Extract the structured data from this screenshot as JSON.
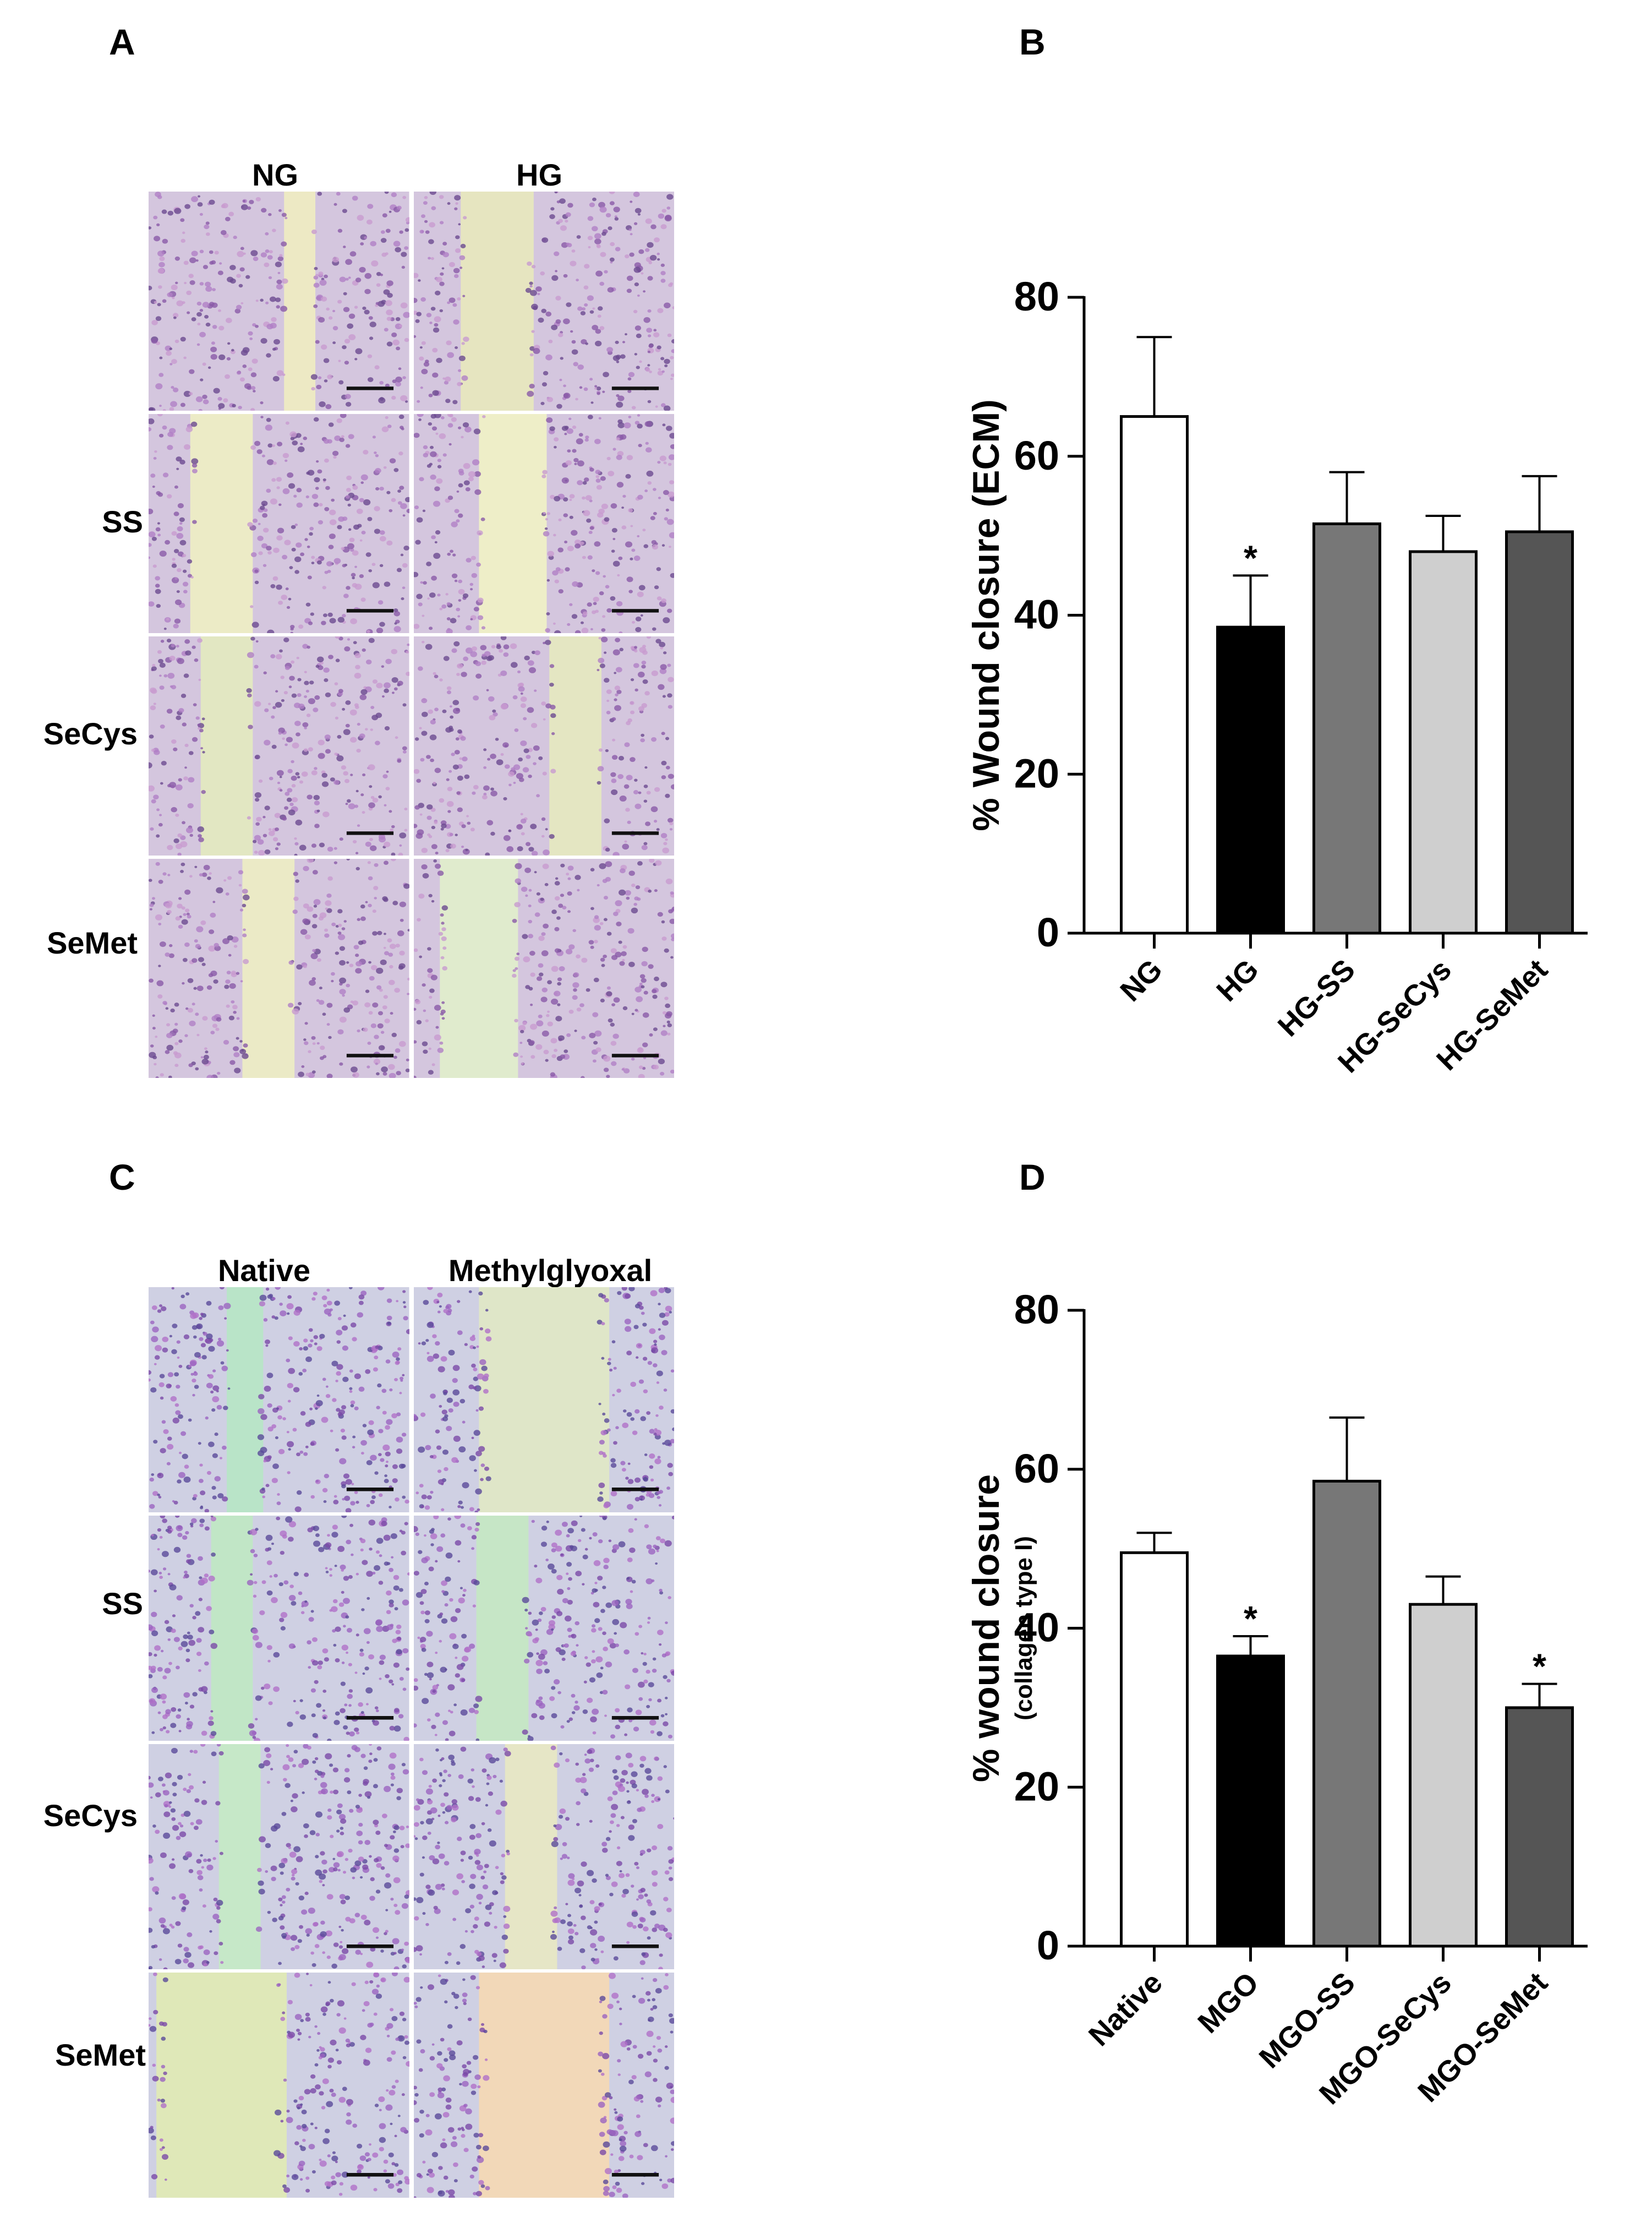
{
  "panel_letters": [
    "A",
    "B",
    "C",
    "D"
  ],
  "panel_a": {
    "column_labels": [
      "NG",
      "HG"
    ],
    "row_labels": [
      "",
      "SS",
      "SeCys",
      "SeMet"
    ]
  },
  "panel_c": {
    "column_labels": [
      "Native",
      "Methylglyoxal"
    ],
    "row_labels": [
      "",
      "SS",
      "SeCys",
      "SeMet"
    ]
  },
  "chart_data": [
    {
      "type": "bar",
      "categories": [
        "NG",
        "HG",
        "HG-SS",
        "HG-SeCys",
        "HG-SeMet"
      ],
      "values": [
        65,
        38.5,
        51.5,
        48,
        50.5
      ],
      "errors": [
        10,
        6.5,
        6.5,
        4.5,
        7
      ],
      "significance": [
        "",
        "*",
        "",
        "",
        ""
      ],
      "bar_colors": [
        "#ffffff",
        "#000000",
        "#777777",
        "#cfcfcf",
        "#555555"
      ],
      "ylabel": "% Wound closure (ECM)",
      "ylabel_sub": "",
      "ylim": [
        0,
        80
      ],
      "yticks": [
        0,
        20,
        40,
        60,
        80
      ],
      "ytick_labels": [
        "0",
        "20",
        "40",
        "60",
        "80"
      ]
    },
    {
      "type": "bar",
      "categories": [
        "Native",
        "MGO",
        "MGO-SS",
        "MGO-SeCys",
        "MGO-SeMet"
      ],
      "values": [
        49.5,
        36.5,
        58.5,
        43,
        30
      ],
      "errors": [
        2.5,
        2.5,
        8,
        3.5,
        3
      ],
      "significance": [
        "",
        "*",
        "",
        "",
        "*"
      ],
      "bar_colors": [
        "#ffffff",
        "#000000",
        "#777777",
        "#cfcfcf",
        "#555555"
      ],
      "ylabel": "% wound closure",
      "ylabel_sub": "(collagen type I)",
      "ylim": [
        0,
        80
      ],
      "yticks": [
        0,
        20,
        40,
        60,
        80
      ],
      "ytick_labels": [
        "0",
        "20",
        "40",
        "60",
        "80"
      ]
    }
  ]
}
